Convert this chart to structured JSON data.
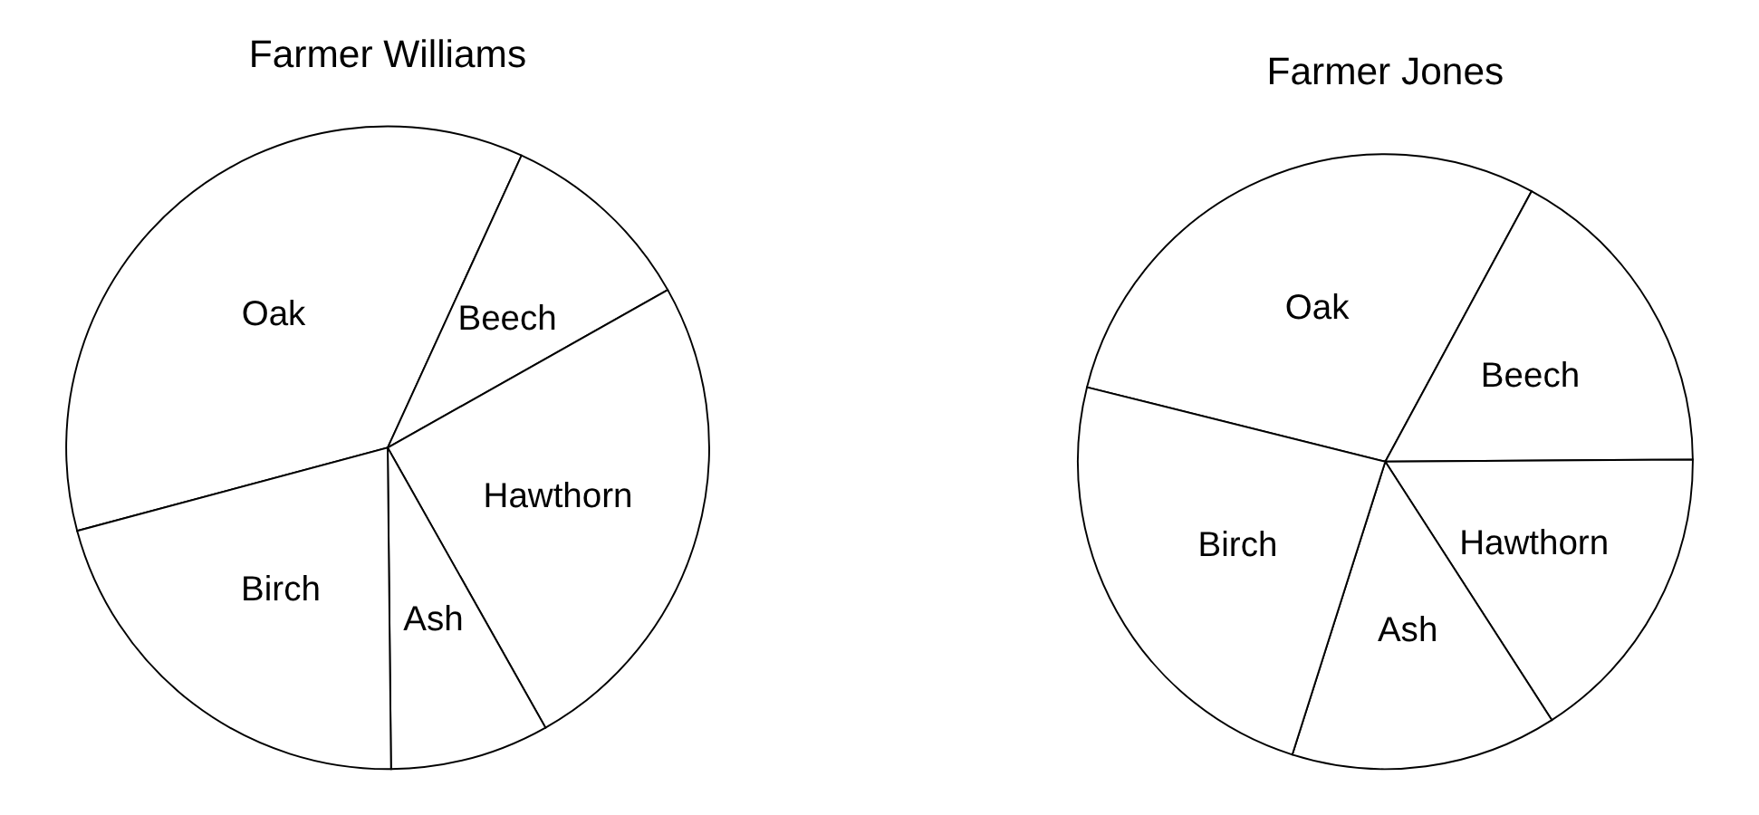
{
  "chart_data": [
    {
      "type": "pie",
      "title": "Farmer Williams",
      "categories": [
        "Oak",
        "Beech",
        "Hawthorn",
        "Ash",
        "Birch"
      ],
      "values": [
        36,
        10,
        25,
        8,
        21
      ],
      "colors": [
        "#ffffff",
        "#ffffff",
        "#ffffff",
        "#ffffff",
        "#ffffff"
      ]
    },
    {
      "type": "pie",
      "title": "Farmer Jones",
      "categories": [
        "Oak",
        "Beech",
        "Hawthorn",
        "Ash",
        "Birch"
      ],
      "values": [
        29,
        17,
        16,
        14,
        24
      ],
      "colors": [
        "#ffffff",
        "#ffffff",
        "#ffffff",
        "#ffffff",
        "#ffffff"
      ]
    }
  ]
}
